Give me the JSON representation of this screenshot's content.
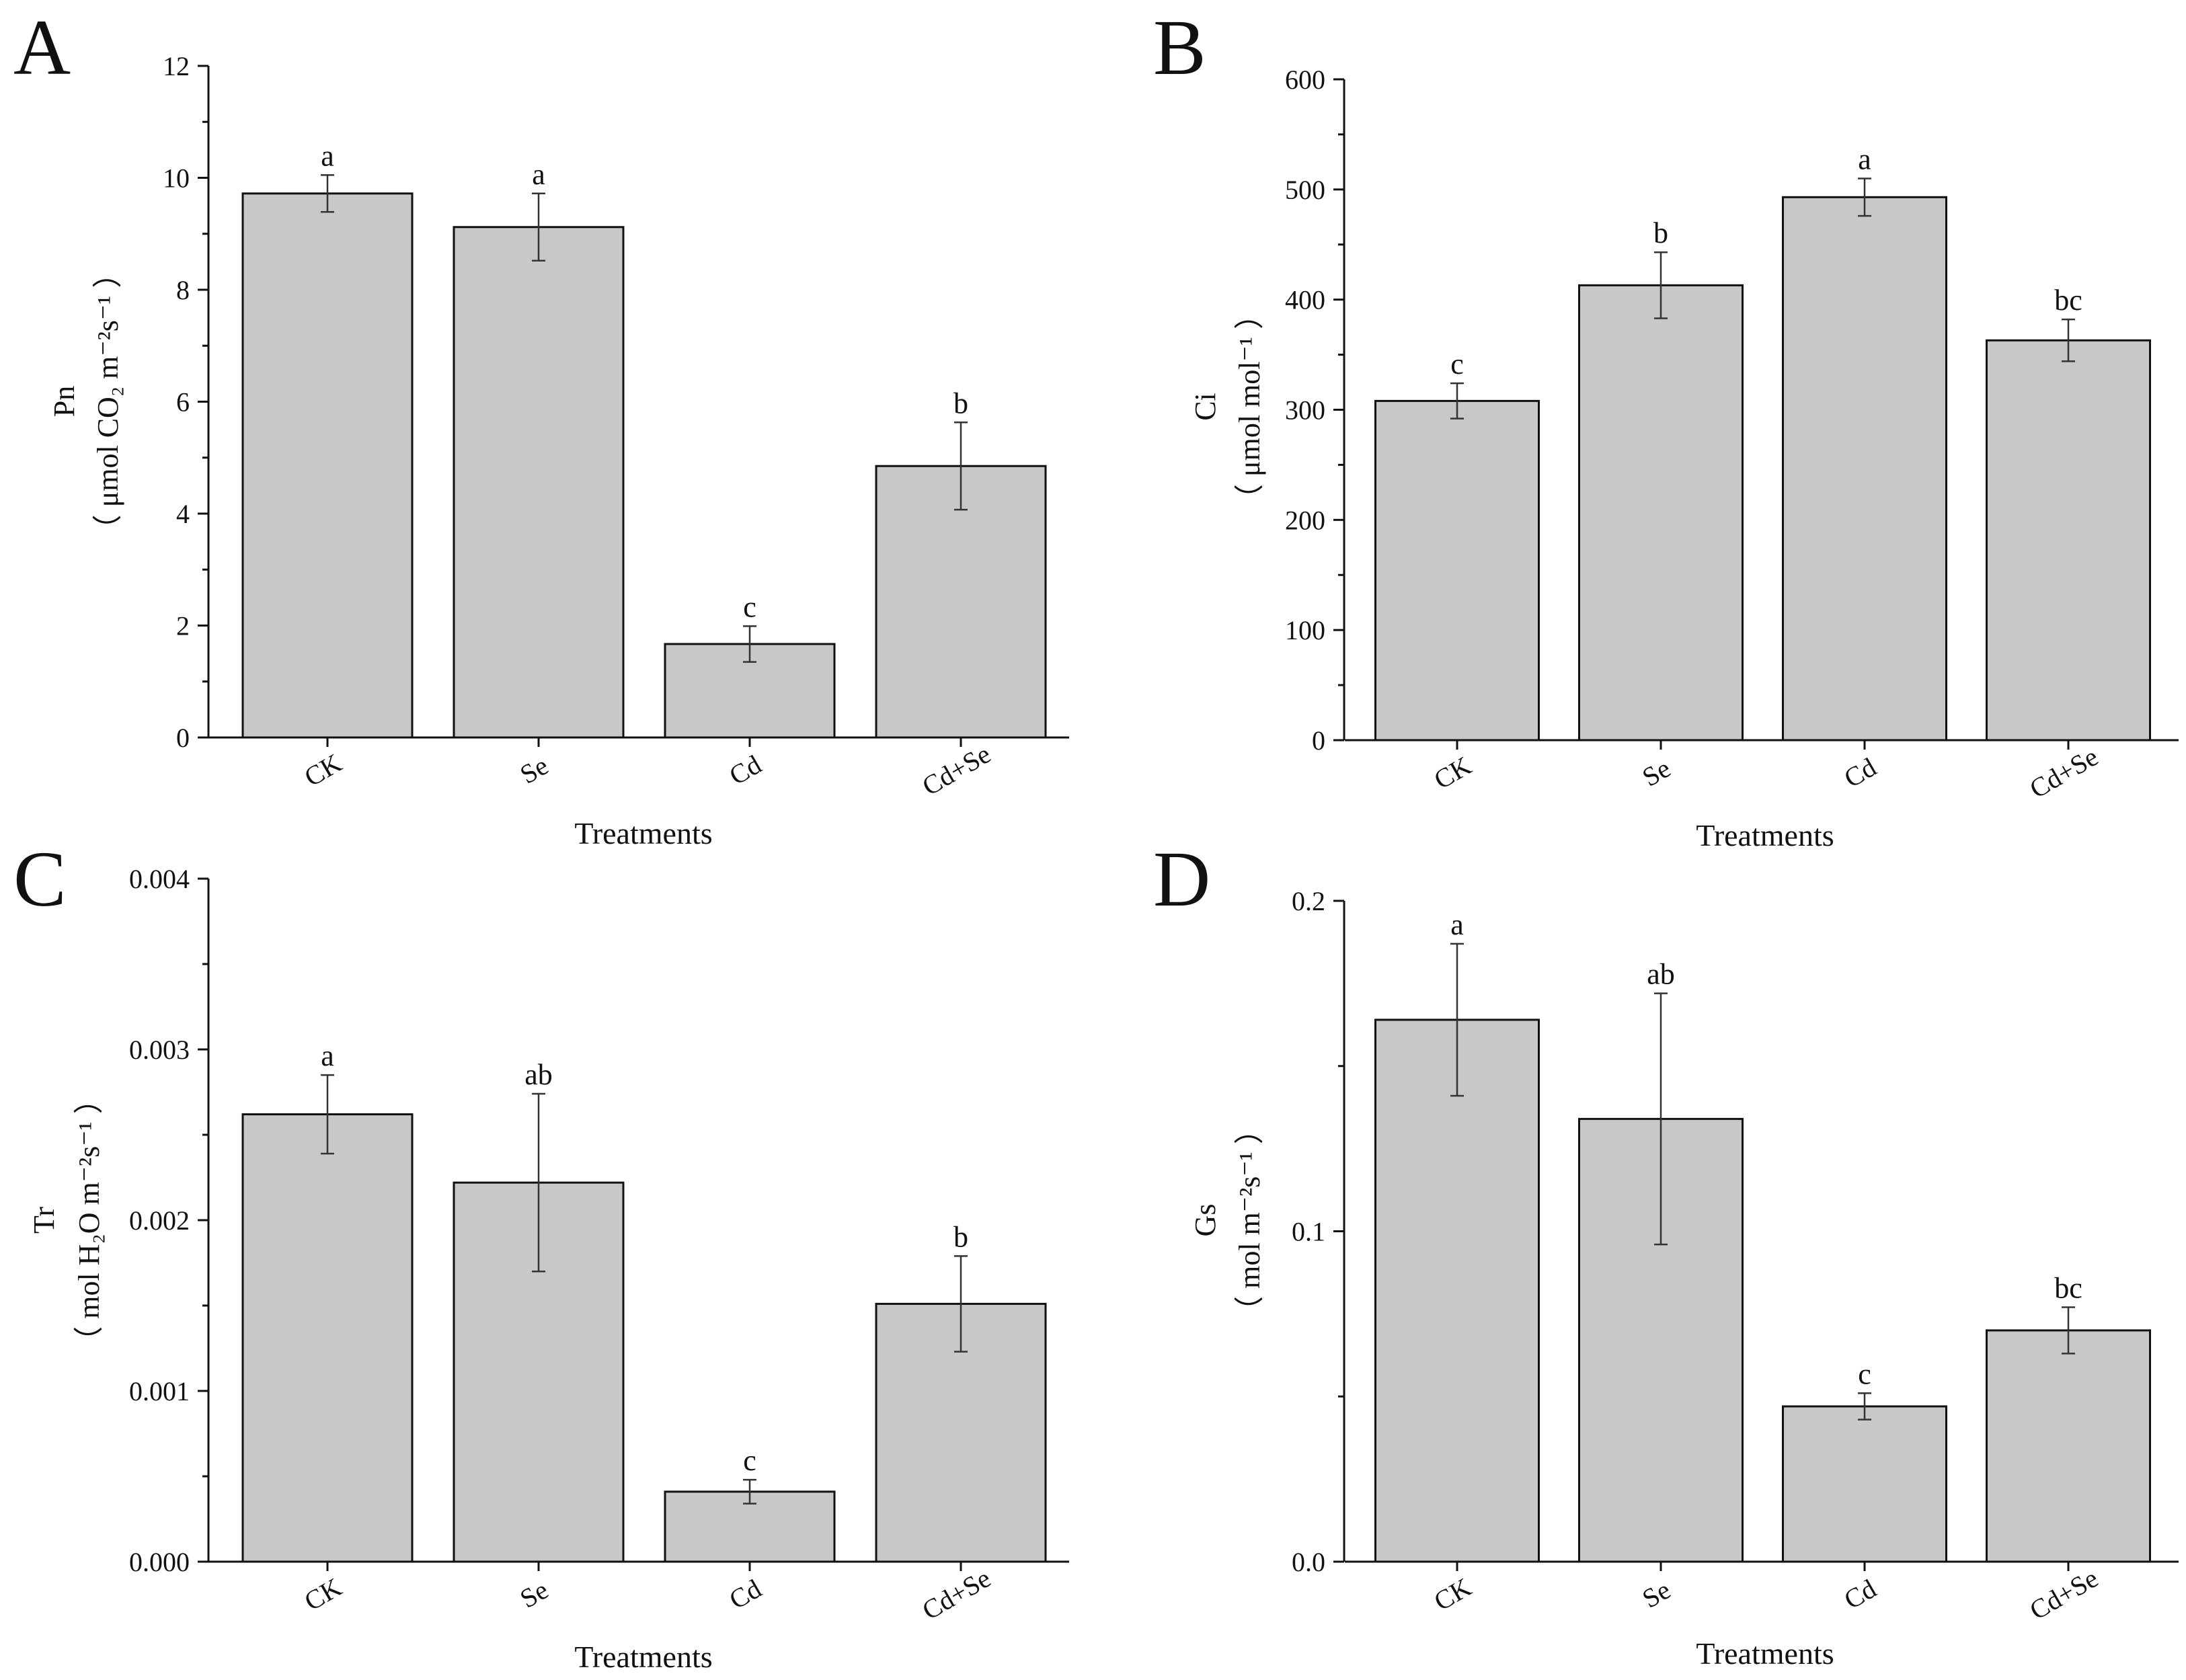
{
  "chart_data": [
    {
      "type": "bar",
      "panel": "A",
      "categories": [
        "CK",
        "Se",
        "Cd",
        "Cd+Se"
      ],
      "values": [
        9.72,
        9.12,
        1.67,
        4.85
      ],
      "errors": [
        0.33,
        0.6,
        0.32,
        0.78
      ],
      "significance": [
        "a",
        "a",
        "c",
        "b"
      ],
      "ylim": [
        0,
        12
      ],
      "yticks": [
        0,
        2,
        4,
        6,
        8,
        10,
        12
      ],
      "ytick_labels": [
        "0",
        "2",
        "4",
        "6",
        "8",
        "10",
        "12"
      ],
      "xlabel": "Treatments",
      "ylabel_main": "Pn",
      "ylabel_unit": "（ μmol CO₂ m⁻²s⁻¹ ）"
    },
    {
      "type": "bar",
      "panel": "B",
      "categories": [
        "CK",
        "Se",
        "Cd",
        "Cd+Se"
      ],
      "values": [
        308,
        413,
        493,
        363
      ],
      "errors": [
        16,
        30,
        17,
        19
      ],
      "significance": [
        "c",
        "b",
        "a",
        "bc"
      ],
      "ylim": [
        0,
        600
      ],
      "yticks": [
        0,
        100,
        200,
        300,
        400,
        500,
        600
      ],
      "ytick_labels": [
        "0",
        "100",
        "200",
        "300",
        "400",
        "500",
        "600"
      ],
      "xlabel": "Treatments",
      "ylabel_main": "Ci",
      "ylabel_unit": "（ μmol mol⁻¹ ）"
    },
    {
      "type": "bar",
      "panel": "C",
      "categories": [
        "CK",
        "Se",
        "Cd",
        "Cd+Se"
      ],
      "values": [
        0.00262,
        0.00222,
        0.00041,
        0.00151
      ],
      "errors": [
        0.00023,
        0.00052,
        7e-05,
        0.00028
      ],
      "significance": [
        "a",
        "ab",
        "c",
        "b"
      ],
      "ylim": [
        0,
        0.004
      ],
      "yticks": [
        0,
        0.001,
        0.002,
        0.003,
        0.004
      ],
      "ytick_labels": [
        "0.000",
        "0.001",
        "0.002",
        "0.003",
        "0.004"
      ],
      "xlabel": "Treatments",
      "ylabel_main": "Tr",
      "ylabel_unit": "（ mol H₂O m⁻²s⁻¹ ）"
    },
    {
      "type": "bar",
      "panel": "D",
      "categories": [
        "CK",
        "Se",
        "Cd",
        "Cd+Se"
      ],
      "values": [
        0.164,
        0.134,
        0.047,
        0.07
      ],
      "errors": [
        0.023,
        0.038,
        0.004,
        0.007
      ],
      "significance": [
        "a",
        "ab",
        "c",
        "bc"
      ],
      "ylim": [
        0,
        0.2
      ],
      "yticks": [
        0,
        0.1,
        0.2
      ],
      "ytick_labels": [
        "0.0",
        "0.1",
        "0.2"
      ],
      "xlabel": "Treatments",
      "ylabel_main": "Gs",
      "ylabel_unit": "（ mol m⁻²s⁻¹ ）"
    }
  ]
}
